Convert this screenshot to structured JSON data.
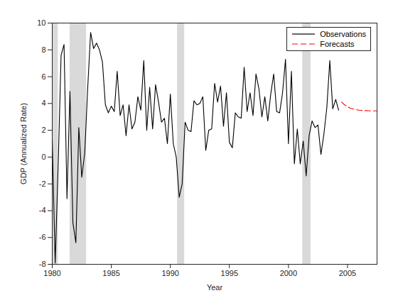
{
  "chart_data": {
    "type": "line",
    "x_label": "Year",
    "y_label": "GDP (Annualized Rate)",
    "xlim": [
      1980,
      2007.5
    ],
    "xticks": [
      1980,
      1985,
      1990,
      1995,
      2000,
      2005
    ],
    "ylim": [
      -8,
      10
    ],
    "yticks": [
      -8,
      -6,
      -4,
      -2,
      0,
      2,
      4,
      6,
      8,
      10
    ],
    "legend": "upper right",
    "recessions": [
      [
        1980.0,
        1980.5
      ],
      [
        1981.5,
        1982.9
      ],
      [
        1990.6,
        1991.2
      ],
      [
        2001.2,
        2001.9
      ]
    ],
    "series": [
      {
        "name": "Observations",
        "color": "#000000",
        "line_style": "solid",
        "x": [
          1980,
          1980.25,
          1980.5,
          1980.75,
          1981,
          1981.25,
          1981.5,
          1981.75,
          1982,
          1982.25,
          1982.5,
          1982.75,
          1983,
          1983.25,
          1983.5,
          1983.75,
          1984,
          1984.25,
          1984.5,
          1984.75,
          1985,
          1985.25,
          1985.5,
          1985.75,
          1986,
          1986.25,
          1986.5,
          1986.75,
          1987,
          1987.25,
          1987.5,
          1987.75,
          1988,
          1988.25,
          1988.5,
          1988.75,
          1989,
          1989.25,
          1989.5,
          1989.75,
          1990,
          1990.25,
          1990.5,
          1990.75,
          1991,
          1991.25,
          1991.5,
          1991.75,
          1992,
          1992.25,
          1992.5,
          1992.75,
          1993,
          1993.25,
          1993.5,
          1993.75,
          1994,
          1994.25,
          1994.5,
          1994.75,
          1995,
          1995.25,
          1995.5,
          1995.75,
          1996,
          1996.25,
          1996.5,
          1996.75,
          1997,
          1997.25,
          1997.5,
          1997.75,
          1998,
          1998.25,
          1998.5,
          1998.75,
          1999,
          1999.25,
          1999.5,
          1999.75,
          2000,
          2000.25,
          2000.5,
          2000.75,
          2001,
          2001.25,
          2001.5,
          2001.75,
          2002,
          2002.25,
          2002.5,
          2002.75,
          2003,
          2003.25,
          2003.5,
          2003.75,
          2004,
          2004.25
        ],
        "values": [
          1.3,
          -7.9,
          -0.7,
          7.6,
          8.4,
          -3.1,
          4.9,
          -4.9,
          -6.4,
          2.2,
          -1.5,
          0.3,
          5.1,
          9.3,
          8.1,
          8.5,
          8.0,
          7.1,
          3.9,
          3.3,
          3.8,
          3.4,
          6.4,
          3.1,
          3.9,
          1.6,
          3.9,
          2.1,
          2.6,
          4.5,
          3.5,
          7.2,
          2.0,
          5.2,
          2.1,
          5.4,
          4.1,
          2.6,
          2.9,
          1.0,
          4.7,
          1.0,
          0.0,
          -3.0,
          -2.0,
          2.6,
          2.0,
          1.9,
          4.2,
          3.9,
          4.0,
          4.5,
          0.5,
          2.0,
          2.1,
          5.5,
          4.1,
          5.3,
          2.3,
          4.8,
          1.1,
          0.7,
          3.3,
          3.0,
          2.9,
          6.7,
          3.4,
          4.8,
          3.1,
          6.2,
          5.1,
          3.0,
          4.5,
          2.7,
          4.7,
          6.2,
          3.4,
          3.3,
          4.8,
          7.3,
          1.0,
          6.4,
          -0.5,
          2.1,
          -0.5,
          1.2,
          -1.4,
          1.6,
          2.7,
          2.2,
          2.4,
          0.2,
          1.7,
          3.7,
          7.2,
          3.6,
          4.3,
          3.5
        ]
      },
      {
        "name": "Forecasts",
        "color": "#ff0000",
        "line_style": "dashed",
        "x": [
          2004.5,
          2004.75,
          2005,
          2005.25,
          2005.5,
          2005.75,
          2006,
          2006.25,
          2006.5,
          2006.75,
          2007,
          2007.25,
          2007.5
        ],
        "values": [
          4.1,
          3.9,
          3.75,
          3.65,
          3.58,
          3.53,
          3.5,
          3.48,
          3.47,
          3.46,
          3.45,
          3.45,
          3.45
        ]
      }
    ]
  }
}
